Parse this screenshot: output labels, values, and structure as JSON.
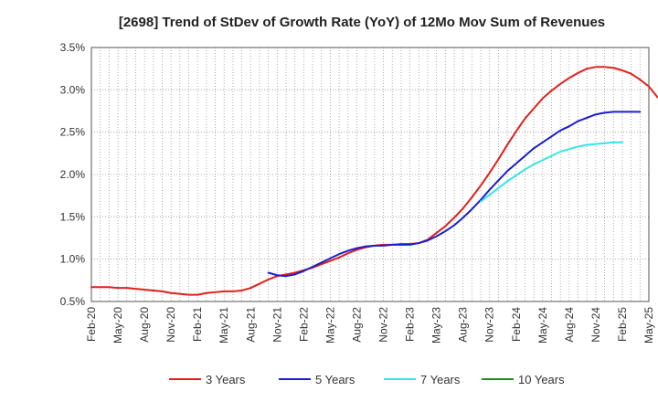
{
  "chart_data": {
    "type": "line",
    "title": "[2698]  Trend of StDev of Growth Rate (YoY) of 12Mo Mov Sum of Revenues",
    "xlabel": "",
    "ylabel": "",
    "ylim": [
      0.5,
      3.5
    ],
    "y_ticks": [
      "0.5%",
      "1.0%",
      "1.5%",
      "2.0%",
      "2.5%",
      "3.0%",
      "3.5%"
    ],
    "x_ticks": [
      "Feb-20",
      "May-20",
      "Aug-20",
      "Nov-20",
      "Feb-21",
      "May-21",
      "Aug-21",
      "Nov-21",
      "Feb-22",
      "May-22",
      "Aug-22",
      "Nov-22",
      "Feb-23",
      "May-23",
      "Aug-23",
      "Nov-23",
      "Feb-24",
      "May-24",
      "Aug-24",
      "Nov-24",
      "Feb-25",
      "May-25"
    ],
    "legend_position": "bottom",
    "grid": true,
    "series": [
      {
        "name": "3 Years",
        "color": "#e0201b",
        "x_start": "Feb-20",
        "values": [
          0.67,
          0.67,
          0.67,
          0.66,
          0.66,
          0.65,
          0.64,
          0.63,
          0.62,
          0.6,
          0.59,
          0.58,
          0.58,
          0.6,
          0.61,
          0.62,
          0.62,
          0.63,
          0.66,
          0.71,
          0.76,
          0.8,
          0.82,
          0.84,
          0.87,
          0.9,
          0.94,
          0.98,
          1.02,
          1.07,
          1.11,
          1.14,
          1.16,
          1.17,
          1.17,
          1.18,
          1.18,
          1.19,
          1.23,
          1.31,
          1.39,
          1.49,
          1.6,
          1.73,
          1.87,
          2.02,
          2.18,
          2.35,
          2.51,
          2.66,
          2.78,
          2.9,
          2.99,
          3.07,
          3.14,
          3.2,
          3.25,
          3.27,
          3.27,
          3.26,
          3.23,
          3.19,
          3.12,
          3.04,
          2.91
        ]
      },
      {
        "name": "5 Years",
        "color": "#1a1fcc",
        "x_start": "Oct-21",
        "values": [
          0.84,
          0.81,
          0.8,
          0.82,
          0.86,
          0.91,
          0.96,
          1.01,
          1.06,
          1.1,
          1.13,
          1.15,
          1.16,
          1.16,
          1.17,
          1.17,
          1.17,
          1.19,
          1.22,
          1.27,
          1.33,
          1.4,
          1.49,
          1.59,
          1.7,
          1.82,
          1.93,
          2.04,
          2.13,
          2.22,
          2.31,
          2.38,
          2.45,
          2.52,
          2.57,
          2.63,
          2.67,
          2.71,
          2.73,
          2.74,
          2.74,
          2.74,
          2.74
        ]
      },
      {
        "name": "7 Years",
        "color": "#33e6e6",
        "x_start": "Oct-23",
        "values": [
          1.68,
          1.76,
          1.84,
          1.92,
          1.99,
          2.06,
          2.12,
          2.17,
          2.22,
          2.27,
          2.3,
          2.33,
          2.35,
          2.36,
          2.37,
          2.38,
          2.38
        ]
      },
      {
        "name": "10 Years",
        "color": "#228b22",
        "x_start": "",
        "values": []
      }
    ]
  }
}
